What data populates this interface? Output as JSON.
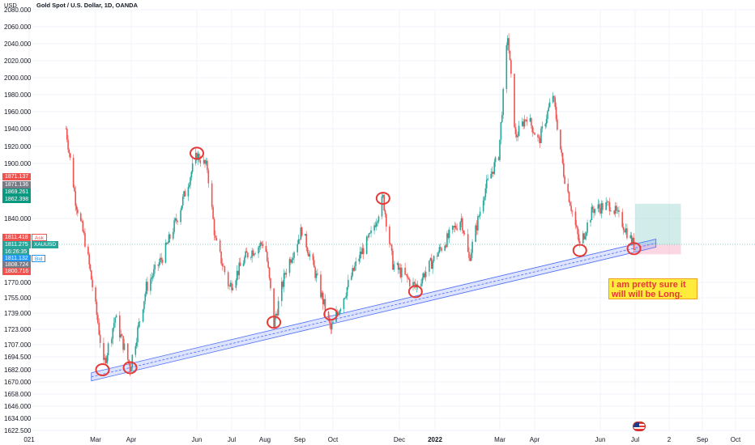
{
  "header": {
    "currency": "USD",
    "symbol_title": "Gold Spot / U.S. Dollar, 1D, OANDA"
  },
  "price_tags": [
    {
      "value": "1871.137",
      "color": "#ef5350"
    },
    {
      "value": "1871.136",
      "color": "#787b86"
    },
    {
      "value": "1869.261",
      "color": "#089981"
    },
    {
      "value": "1862.398",
      "color": "#089981"
    },
    {
      "value": "1811.418",
      "label": "Ask",
      "color": "#ef5350"
    },
    {
      "value": "1811.275",
      "label": "XAUUSD",
      "color": "#26a69a"
    },
    {
      "value": "16:26:35",
      "color": "#26a69a"
    },
    {
      "value": "1811.132",
      "label": "Bid",
      "color": "#2196f3"
    },
    {
      "value": "1808.724",
      "color": "#787b86"
    },
    {
      "value": "1800.716",
      "color": "#ef5350"
    }
  ],
  "annotation_text": "I am pretty sure it will will be Long.",
  "colors": {
    "up": "#26a69a",
    "down": "#ef5350",
    "trend_channel": "#4a6cf7",
    "markers": "#e53935",
    "target_zone": "#b2dfdb",
    "stop_zone": "#f8bbd0"
  },
  "chart_data": {
    "type": "candlestick",
    "title": "Gold Spot / U.S. Dollar, 1D, OANDA",
    "ylabel": "USD",
    "ylim": [
      1622.5,
      2080.0
    ],
    "y_ticks": [
      "2080.000",
      "2060.000",
      "2040.000",
      "2020.000",
      "2000.000",
      "1980.000",
      "1960.000",
      "1940.000",
      "1920.000",
      "1900.000",
      "1840.000",
      "1770.000",
      "1755.000",
      "1739.000",
      "1723.000",
      "1707.000",
      "1694.500",
      "1682.000",
      "1670.000",
      "1658.000",
      "1646.000",
      "1634.000",
      "1622.500"
    ],
    "x_ticks": [
      "021",
      "Mar",
      "Apr",
      "Jun",
      "Jul",
      "Aug",
      "Sep",
      "Oct",
      "Dec",
      "2022",
      "Mar",
      "Apr",
      "Jun",
      "Jul",
      "2",
      "Sep",
      "Oct"
    ],
    "x_ticks_bold": [
      "2022"
    ],
    "close_path": [
      {
        "date": "2021-02-01",
        "close": 1940
      },
      {
        "date": "2021-02-10",
        "close": 1860
      },
      {
        "date": "2021-02-20",
        "close": 1810
      },
      {
        "date": "2021-03-03",
        "close": 1730
      },
      {
        "date": "2021-03-08",
        "close": 1685
      },
      {
        "date": "2021-03-18",
        "close": 1735
      },
      {
        "date": "2021-03-31",
        "close": 1684
      },
      {
        "date": "2021-04-15",
        "close": 1765
      },
      {
        "date": "2021-05-01",
        "close": 1800
      },
      {
        "date": "2021-05-15",
        "close": 1845
      },
      {
        "date": "2021-06-01",
        "close": 1910
      },
      {
        "date": "2021-06-10",
        "close": 1895
      },
      {
        "date": "2021-06-17",
        "close": 1815
      },
      {
        "date": "2021-06-29",
        "close": 1765
      },
      {
        "date": "2021-07-15",
        "close": 1800
      },
      {
        "date": "2021-08-01",
        "close": 1815
      },
      {
        "date": "2021-08-09",
        "close": 1728
      },
      {
        "date": "2021-08-20",
        "close": 1785
      },
      {
        "date": "2021-09-03",
        "close": 1828
      },
      {
        "date": "2021-09-20",
        "close": 1760
      },
      {
        "date": "2021-09-29",
        "close": 1722
      },
      {
        "date": "2021-10-15",
        "close": 1768
      },
      {
        "date": "2021-10-25",
        "close": 1798
      },
      {
        "date": "2021-11-05",
        "close": 1822
      },
      {
        "date": "2021-11-16",
        "close": 1862
      },
      {
        "date": "2021-11-25",
        "close": 1790
      },
      {
        "date": "2021-12-15",
        "close": 1765
      },
      {
        "date": "2022-01-05",
        "close": 1805
      },
      {
        "date": "2022-01-25",
        "close": 1840
      },
      {
        "date": "2022-02-01",
        "close": 1795
      },
      {
        "date": "2022-02-15",
        "close": 1870
      },
      {
        "date": "2022-02-28",
        "close": 1910
      },
      {
        "date": "2022-03-08",
        "close": 2050
      },
      {
        "date": "2022-03-15",
        "close": 1930
      },
      {
        "date": "2022-03-25",
        "close": 1955
      },
      {
        "date": "2022-04-05",
        "close": 1925
      },
      {
        "date": "2022-04-18",
        "close": 1980
      },
      {
        "date": "2022-04-28",
        "close": 1890
      },
      {
        "date": "2022-05-13",
        "close": 1810
      },
      {
        "date": "2022-05-25",
        "close": 1850
      },
      {
        "date": "2022-06-10",
        "close": 1855
      },
      {
        "date": "2022-06-20",
        "close": 1835
      },
      {
        "date": "2022-07-01",
        "close": 1808
      }
    ],
    "markers": [
      {
        "date": "2021-03-07",
        "price": 1682
      },
      {
        "date": "2021-03-31",
        "price": 1684
      },
      {
        "date": "2021-06-01",
        "price": 1912
      },
      {
        "date": "2021-08-09",
        "price": 1730
      },
      {
        "date": "2021-09-29",
        "price": 1738
      },
      {
        "date": "2021-11-16",
        "price": 1862
      },
      {
        "date": "2021-12-15",
        "price": 1761
      },
      {
        "date": "2022-05-13",
        "price": 1805
      },
      {
        "date": "2022-06-30",
        "price": 1807
      }
    ],
    "trendline": [
      {
        "date": "2021-02-25",
        "price": 1675
      },
      {
        "date": "2022-07-20",
        "price": 1813
      }
    ],
    "position": {
      "entry": 1811.3,
      "target": 1856,
      "stop": 1800.7,
      "start": "2022-07-01",
      "end": "2022-08-12"
    }
  }
}
